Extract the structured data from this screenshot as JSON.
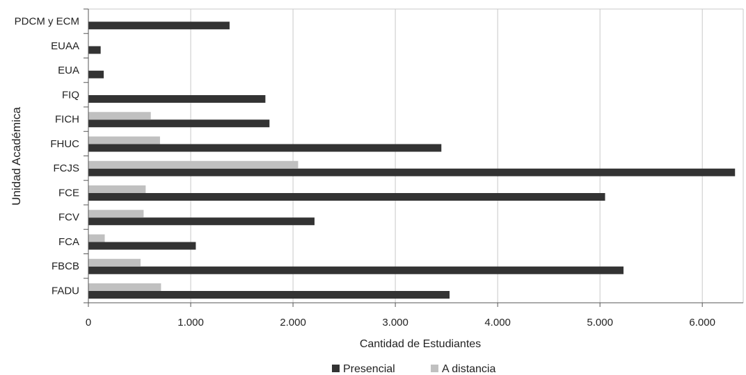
{
  "chart_data": {
    "type": "bar",
    "orientation": "horizontal",
    "title": "",
    "xlabel": "Cantidad de Estudiantes",
    "ylabel": "Unidad Académica",
    "categories": [
      "FADU",
      "FBCB",
      "FCA",
      "FCV",
      "FCE",
      "FCJS",
      "FHUC",
      "FICH",
      "FIQ",
      "EUA",
      "EUAA",
      "PDCM y ECM"
    ],
    "series": [
      {
        "name": "Presencial",
        "color": "#333333",
        "values": [
          3530,
          5230,
          1050,
          2210,
          5050,
          6320,
          3450,
          1770,
          1730,
          150,
          120,
          1380
        ]
      },
      {
        "name": "A distancia",
        "color": "#c0c0c0",
        "values": [
          710,
          510,
          160,
          540,
          560,
          2050,
          700,
          610,
          0,
          0,
          0,
          0
        ]
      }
    ],
    "xlim": [
      0,
      6400
    ],
    "xticks": [
      0,
      1000,
      2000,
      3000,
      4000,
      5000,
      6000
    ],
    "xtick_labels": [
      "0",
      "1.000",
      "2.000",
      "3.000",
      "4.000",
      "5.000",
      "6.000"
    ],
    "grid": true,
    "legend": "bottom"
  }
}
